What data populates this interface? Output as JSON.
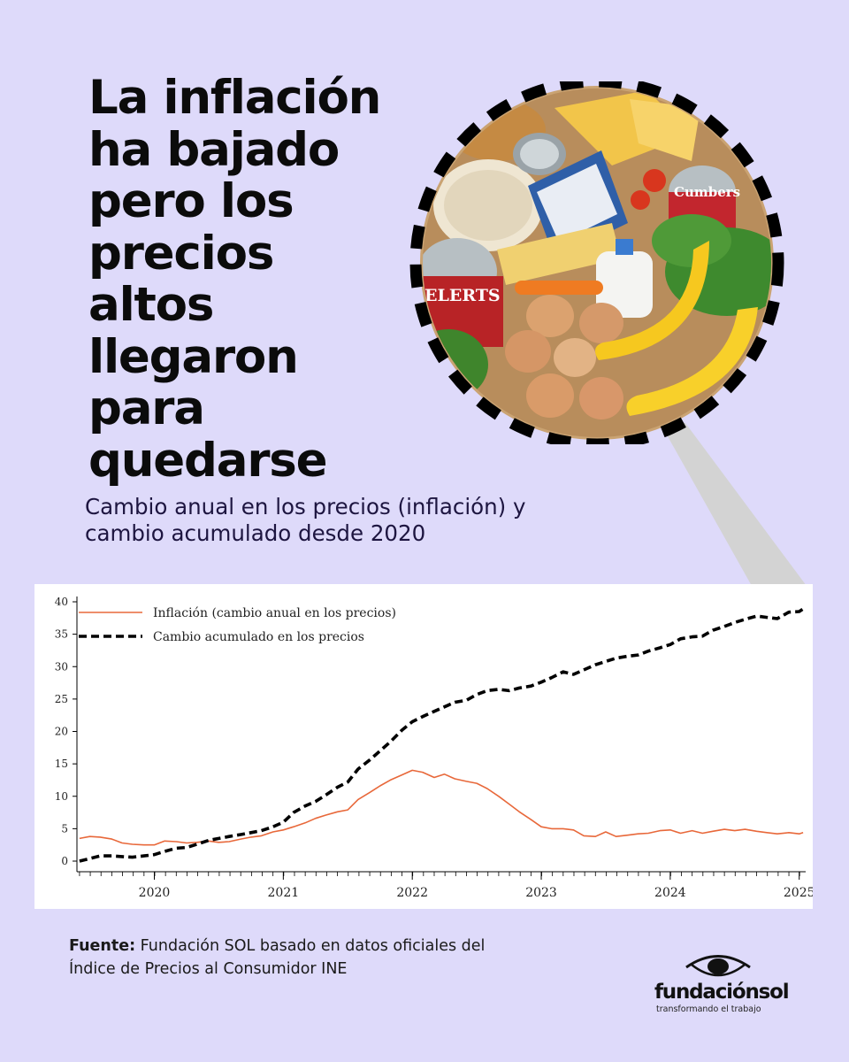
{
  "headline": {
    "lines": [
      "La inflación",
      "ha bajado",
      "pero los",
      "precios",
      "altos",
      "llegaron",
      "para",
      "quedarse"
    ]
  },
  "subtitle": {
    "lines": [
      "Cambio anual en los precios (inflación) y",
      "cambio acumulado desde 2020"
    ]
  },
  "image": {
    "subject": "basket-of-groceries",
    "label_can_left": "ELERTS",
    "label_can_right": "Cumbers"
  },
  "chart_data": {
    "type": "line",
    "title": "",
    "xlabel": "",
    "ylabel": "",
    "ylim": [
      0,
      40
    ],
    "yticks": [
      0,
      5,
      10,
      15,
      20,
      25,
      30,
      35,
      40
    ],
    "xlim": [
      2019.4,
      2025.05
    ],
    "xticks": [
      2020,
      2021,
      2022,
      2023,
      2024,
      2025
    ],
    "xtick_labels": [
      "2020",
      "2021",
      "2022",
      "2023",
      "2024",
      "2025"
    ],
    "grid": false,
    "legend": "top-left",
    "series": [
      {
        "name": "Inflación (cambio anual en los precios)",
        "style": "solid",
        "color": "#e8683a",
        "points": [
          [
            2019.42,
            3.5
          ],
          [
            2019.5,
            3.8
          ],
          [
            2019.58,
            3.7
          ],
          [
            2019.67,
            3.4
          ],
          [
            2019.75,
            2.8
          ],
          [
            2019.83,
            2.6
          ],
          [
            2019.92,
            2.5
          ],
          [
            2020.0,
            2.5
          ],
          [
            2020.08,
            3.1
          ],
          [
            2020.17,
            3.0
          ],
          [
            2020.25,
            2.8
          ],
          [
            2020.33,
            2.9
          ],
          [
            2020.42,
            3.1
          ],
          [
            2020.5,
            2.9
          ],
          [
            2020.58,
            3.0
          ],
          [
            2020.67,
            3.4
          ],
          [
            2020.75,
            3.7
          ],
          [
            2020.83,
            3.9
          ],
          [
            2020.92,
            4.5
          ],
          [
            2021.0,
            4.8
          ],
          [
            2021.08,
            5.3
          ],
          [
            2021.17,
            5.9
          ],
          [
            2021.25,
            6.6
          ],
          [
            2021.33,
            7.1
          ],
          [
            2021.42,
            7.6
          ],
          [
            2021.5,
            7.9
          ],
          [
            2021.58,
            9.5
          ],
          [
            2021.67,
            10.6
          ],
          [
            2021.75,
            11.6
          ],
          [
            2021.83,
            12.5
          ],
          [
            2021.92,
            13.3
          ],
          [
            2022.0,
            14.0
          ],
          [
            2022.08,
            13.7
          ],
          [
            2022.17,
            12.9
          ],
          [
            2022.25,
            13.4
          ],
          [
            2022.33,
            12.7
          ],
          [
            2022.42,
            12.3
          ],
          [
            2022.5,
            12.0
          ],
          [
            2022.58,
            11.2
          ],
          [
            2022.67,
            10.0
          ],
          [
            2022.75,
            8.8
          ],
          [
            2022.83,
            7.6
          ],
          [
            2022.92,
            6.4
          ],
          [
            2023.0,
            5.3
          ],
          [
            2023.08,
            5.0
          ],
          [
            2023.17,
            5.0
          ],
          [
            2023.25,
            4.8
          ],
          [
            2023.33,
            3.9
          ],
          [
            2023.42,
            3.8
          ],
          [
            2023.5,
            4.5
          ],
          [
            2023.58,
            3.8
          ],
          [
            2023.67,
            4.0
          ],
          [
            2023.75,
            4.2
          ],
          [
            2023.83,
            4.3
          ],
          [
            2023.92,
            4.7
          ],
          [
            2024.0,
            4.8
          ],
          [
            2024.08,
            4.3
          ],
          [
            2024.17,
            4.7
          ],
          [
            2024.25,
            4.3
          ],
          [
            2024.33,
            4.6
          ],
          [
            2024.42,
            4.9
          ],
          [
            2024.5,
            4.7
          ],
          [
            2024.58,
            4.9
          ],
          [
            2024.67,
            4.6
          ],
          [
            2024.75,
            4.4
          ],
          [
            2024.83,
            4.2
          ],
          [
            2024.92,
            4.4
          ],
          [
            2025.0,
            4.2
          ],
          [
            2025.03,
            4.4
          ]
        ]
      },
      {
        "name": "Cambio acumulado en los precios",
        "style": "dashed",
        "color": "#000000",
        "points": [
          [
            2019.42,
            0.0
          ],
          [
            2019.5,
            0.4
          ],
          [
            2019.58,
            0.8
          ],
          [
            2019.67,
            0.8
          ],
          [
            2019.75,
            0.7
          ],
          [
            2019.83,
            0.6
          ],
          [
            2019.92,
            0.8
          ],
          [
            2020.0,
            1.0
          ],
          [
            2020.08,
            1.5
          ],
          [
            2020.17,
            2.0
          ],
          [
            2020.25,
            2.1
          ],
          [
            2020.33,
            2.6
          ],
          [
            2020.42,
            3.2
          ],
          [
            2020.5,
            3.5
          ],
          [
            2020.58,
            3.8
          ],
          [
            2020.67,
            4.1
          ],
          [
            2020.75,
            4.4
          ],
          [
            2020.83,
            4.7
          ],
          [
            2020.92,
            5.3
          ],
          [
            2021.0,
            6.0
          ],
          [
            2021.08,
            7.5
          ],
          [
            2021.17,
            8.5
          ],
          [
            2021.25,
            9.2
          ],
          [
            2021.33,
            10.2
          ],
          [
            2021.42,
            11.4
          ],
          [
            2021.5,
            12.2
          ],
          [
            2021.58,
            14.2
          ],
          [
            2021.67,
            15.6
          ],
          [
            2021.75,
            17.0
          ],
          [
            2021.83,
            18.4
          ],
          [
            2021.92,
            20.2
          ],
          [
            2022.0,
            21.5
          ],
          [
            2022.08,
            22.3
          ],
          [
            2022.17,
            23.1
          ],
          [
            2022.25,
            23.8
          ],
          [
            2022.33,
            24.5
          ],
          [
            2022.42,
            24.8
          ],
          [
            2022.5,
            25.7
          ],
          [
            2022.58,
            26.3
          ],
          [
            2022.67,
            26.5
          ],
          [
            2022.75,
            26.3
          ],
          [
            2022.83,
            26.7
          ],
          [
            2022.92,
            27.0
          ],
          [
            2023.0,
            27.6
          ],
          [
            2023.08,
            28.3
          ],
          [
            2023.17,
            29.2
          ],
          [
            2023.25,
            28.8
          ],
          [
            2023.33,
            29.5
          ],
          [
            2023.42,
            30.3
          ],
          [
            2023.5,
            30.8
          ],
          [
            2023.58,
            31.3
          ],
          [
            2023.67,
            31.6
          ],
          [
            2023.75,
            31.8
          ],
          [
            2023.83,
            32.4
          ],
          [
            2023.92,
            32.9
          ],
          [
            2024.0,
            33.4
          ],
          [
            2024.08,
            34.3
          ],
          [
            2024.17,
            34.6
          ],
          [
            2024.25,
            34.7
          ],
          [
            2024.33,
            35.6
          ],
          [
            2024.42,
            36.2
          ],
          [
            2024.5,
            36.8
          ],
          [
            2024.58,
            37.3
          ],
          [
            2024.67,
            37.8
          ],
          [
            2024.75,
            37.6
          ],
          [
            2024.83,
            37.4
          ],
          [
            2024.92,
            38.4
          ],
          [
            2025.0,
            38.5
          ],
          [
            2025.03,
            38.9
          ]
        ]
      }
    ]
  },
  "source": {
    "label": "Fuente:",
    "text_line1": " Fundación SOL basado en datos oficiales del",
    "text_line2": "Índice de Precios al Consumidor INE"
  },
  "logo": {
    "name": "fundaciónsol",
    "tagline": "transformando el trabajo"
  },
  "colors": {
    "background": "#dedafa",
    "inflation_line": "#e8683a",
    "cumulative_line": "#000000"
  }
}
